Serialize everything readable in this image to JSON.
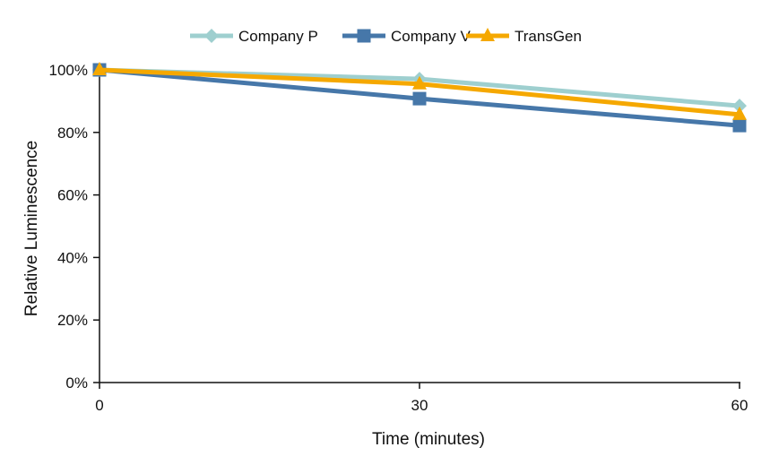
{
  "chart_data": {
    "type": "line",
    "title": "",
    "xlabel": "Time (minutes)",
    "ylabel": "Relative Luminescence",
    "x": [
      0,
      30,
      60
    ],
    "xticks": [
      "0",
      "30",
      "60"
    ],
    "yticks": [
      "0%",
      "20%",
      "40%",
      "60%",
      "80%",
      "100%"
    ],
    "ylim": [
      0,
      100
    ],
    "xlim": [
      0,
      60
    ],
    "grid": false,
    "legend_position": "top",
    "series": [
      {
        "name": "Company P",
        "values": [
          100,
          97.1,
          88.5
        ],
        "color": "#9ecfcf",
        "marker": "diamond"
      },
      {
        "name": "Company V",
        "values": [
          100,
          90.8,
          82.2
        ],
        "color": "#4677a9",
        "marker": "square"
      },
      {
        "name": "TransGen",
        "values": [
          100,
          95.5,
          85.7
        ],
        "color": "#f5a800",
        "marker": "triangle"
      }
    ]
  }
}
